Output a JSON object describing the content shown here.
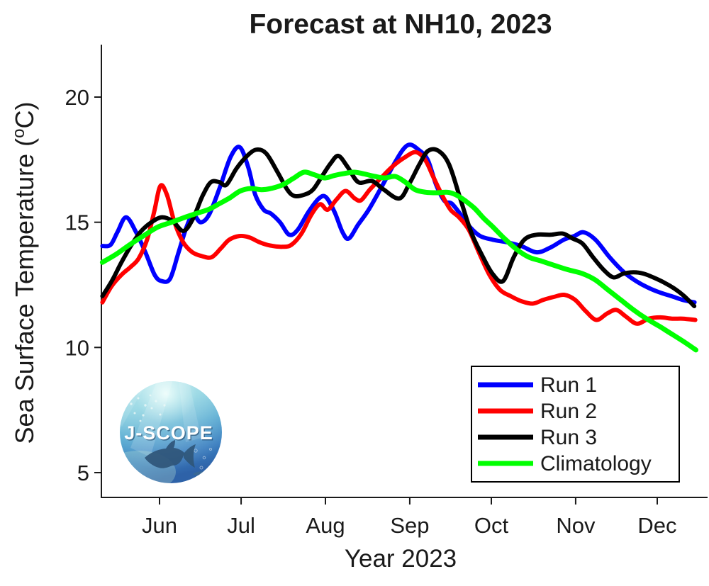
{
  "title": "Forecast at NH10, 2023",
  "axes": {
    "xlabel": "Year 2023",
    "ylabel_parts": {
      "pre": "Sea Surface Temperature (",
      "sup": "o",
      "post": "C)"
    }
  },
  "logo": {
    "text": "J-SCOPE"
  },
  "chart_data": {
    "type": "line",
    "title": "Forecast at NH10, 2023",
    "xlabel": "Year 2023",
    "ylabel": "Sea Surface Temperature (°C)",
    "x_unit": "day_of_year_2023",
    "xlim": [
      131,
      352
    ],
    "ylim": [
      4,
      22
    ],
    "grid": false,
    "legend_position": "lower right",
    "y_ticks": {
      "values": [
        5,
        10,
        15,
        20
      ],
      "labels": [
        "5",
        "10",
        "15",
        "20"
      ]
    },
    "x_ticks": {
      "day_of_year": [
        152,
        182,
        213,
        244,
        274,
        305,
        335
      ],
      "labels": [
        "Jun",
        "Jul",
        "Aug",
        "Sep",
        "Oct",
        "Nov",
        "Dec"
      ]
    },
    "series": [
      {
        "name": "Run 1",
        "color": "#0000ff",
        "width": 6,
        "points": [
          [
            131,
            14.05
          ],
          [
            134,
            14.1
          ],
          [
            136.5,
            14.6
          ],
          [
            139.7,
            15.2
          ],
          [
            143.4,
            14.6
          ],
          [
            146.8,
            13.8
          ],
          [
            150.2,
            12.9
          ],
          [
            152.8,
            12.65
          ],
          [
            155.9,
            12.75
          ],
          [
            159,
            13.8
          ],
          [
            161.9,
            14.8
          ],
          [
            164.3,
            15.3
          ],
          [
            167.1,
            15.0
          ],
          [
            170.2,
            15.3
          ],
          [
            174.2,
            16.4
          ],
          [
            178.1,
            17.6
          ],
          [
            181.5,
            18.0
          ],
          [
            184.6,
            17.2
          ],
          [
            187.2,
            16.1
          ],
          [
            190.3,
            15.5
          ],
          [
            192.9,
            15.35
          ],
          [
            196.3,
            15.0
          ],
          [
            199.7,
            14.5
          ],
          [
            202.8,
            14.7
          ],
          [
            206.7,
            15.4
          ],
          [
            210.6,
            15.95
          ],
          [
            213.2,
            16.0
          ],
          [
            216.4,
            15.4
          ],
          [
            219.3,
            14.6
          ],
          [
            221.6,
            14.35
          ],
          [
            225,
            14.9
          ],
          [
            228.9,
            15.5
          ],
          [
            233.6,
            16.4
          ],
          [
            238.1,
            17.3
          ],
          [
            241.5,
            17.9
          ],
          [
            244.1,
            18.1
          ],
          [
            247.2,
            17.9
          ],
          [
            250.6,
            17.5
          ],
          [
            253.7,
            16.5
          ],
          [
            256.8,
            15.85
          ],
          [
            259.4,
            15.75
          ],
          [
            262.8,
            15.3
          ],
          [
            266.2,
            14.8
          ],
          [
            269.9,
            14.45
          ],
          [
            274.6,
            14.3
          ],
          [
            279.8,
            14.2
          ],
          [
            285,
            14.05
          ],
          [
            290.7,
            13.8
          ],
          [
            295.9,
            14.0
          ],
          [
            300.6,
            14.3
          ],
          [
            304.5,
            14.45
          ],
          [
            307.9,
            14.6
          ],
          [
            312.3,
            14.3
          ],
          [
            317.5,
            13.6
          ],
          [
            322.8,
            13.0
          ],
          [
            327.2,
            12.65
          ],
          [
            331.4,
            12.4
          ],
          [
            335.8,
            12.2
          ],
          [
            340.2,
            12.05
          ],
          [
            344.3,
            11.9
          ],
          [
            348.7,
            11.8
          ]
        ]
      },
      {
        "name": "Run 2",
        "color": "#ff0000",
        "width": 6,
        "points": [
          [
            131,
            11.8
          ],
          [
            134.4,
            12.45
          ],
          [
            138,
            12.9
          ],
          [
            141.2,
            13.2
          ],
          [
            144.3,
            13.55
          ],
          [
            147.4,
            14.3
          ],
          [
            150,
            15.4
          ],
          [
            152.3,
            16.45
          ],
          [
            154.7,
            16.1
          ],
          [
            157.5,
            15.0
          ],
          [
            160.7,
            14.2
          ],
          [
            164.1,
            13.8
          ],
          [
            167.5,
            13.65
          ],
          [
            171.1,
            13.6
          ],
          [
            174.5,
            13.95
          ],
          [
            177.6,
            14.3
          ],
          [
            181.3,
            14.45
          ],
          [
            184.9,
            14.4
          ],
          [
            188.8,
            14.2
          ],
          [
            192.7,
            14.07
          ],
          [
            197.2,
            14.02
          ],
          [
            200.5,
            14.1
          ],
          [
            204.2,
            14.55
          ],
          [
            207.8,
            15.3
          ],
          [
            211,
            15.72
          ],
          [
            213.8,
            15.5
          ],
          [
            217,
            15.9
          ],
          [
            220.4,
            16.25
          ],
          [
            223.8,
            15.95
          ],
          [
            226.1,
            15.88
          ],
          [
            229.3,
            16.3
          ],
          [
            233.7,
            16.8
          ],
          [
            237.9,
            17.25
          ],
          [
            242.3,
            17.6
          ],
          [
            246.2,
            17.8
          ],
          [
            249.6,
            17.5
          ],
          [
            252.7,
            16.8
          ],
          [
            255.8,
            16.1
          ],
          [
            259,
            15.5
          ],
          [
            262.1,
            15.2
          ],
          [
            265.7,
            14.7
          ],
          [
            269.4,
            13.8
          ],
          [
            273.3,
            12.9
          ],
          [
            277.2,
            12.3
          ],
          [
            281.1,
            12.05
          ],
          [
            285,
            11.85
          ],
          [
            289.2,
            11.75
          ],
          [
            293.1,
            11.9
          ],
          [
            297,
            12.02
          ],
          [
            300.9,
            12.1
          ],
          [
            304.8,
            11.9
          ],
          [
            308.7,
            11.45
          ],
          [
            312.6,
            11.1
          ],
          [
            316.5,
            11.35
          ],
          [
            319.9,
            11.5
          ],
          [
            323.3,
            11.25
          ],
          [
            327.5,
            10.95
          ],
          [
            331.9,
            11.15
          ],
          [
            336.1,
            11.2
          ],
          [
            340.5,
            11.15
          ],
          [
            344.4,
            11.15
          ],
          [
            349,
            11.1
          ]
        ]
      },
      {
        "name": "Run 3",
        "color": "#000000",
        "width": 6,
        "points": [
          [
            131,
            12.05
          ],
          [
            134.7,
            12.7
          ],
          [
            138,
            13.4
          ],
          [
            141.7,
            14.1
          ],
          [
            145.3,
            14.65
          ],
          [
            149,
            15.0
          ],
          [
            152.9,
            15.2
          ],
          [
            156.8,
            15.05
          ],
          [
            160.7,
            14.65
          ],
          [
            164.1,
            15.1
          ],
          [
            167.8,
            16.05
          ],
          [
            170.9,
            16.6
          ],
          [
            174,
            16.6
          ],
          [
            176.6,
            16.5
          ],
          [
            180.3,
            17.15
          ],
          [
            184.2,
            17.65
          ],
          [
            187.6,
            17.9
          ],
          [
            191.2,
            17.75
          ],
          [
            195.4,
            17.0
          ],
          [
            199,
            16.3
          ],
          [
            201.6,
            16.05
          ],
          [
            205.2,
            16.1
          ],
          [
            208.4,
            16.3
          ],
          [
            211.8,
            16.85
          ],
          [
            214.9,
            17.35
          ],
          [
            217.8,
            17.65
          ],
          [
            221.2,
            17.2
          ],
          [
            225.1,
            16.6
          ],
          [
            230.1,
            16.65
          ],
          [
            234.5,
            16.3
          ],
          [
            240.2,
            15.95
          ],
          [
            243.9,
            16.55
          ],
          [
            247.5,
            17.3
          ],
          [
            250.7,
            17.85
          ],
          [
            254.6,
            17.85
          ],
          [
            258.5,
            17.3
          ],
          [
            262.7,
            15.9
          ],
          [
            266.6,
            14.6
          ],
          [
            270.5,
            13.7
          ],
          [
            274.4,
            12.95
          ],
          [
            278.3,
            12.65
          ],
          [
            282.2,
            13.6
          ],
          [
            286.1,
            14.3
          ],
          [
            290.6,
            14.5
          ],
          [
            295.8,
            14.5
          ],
          [
            300.2,
            14.55
          ],
          [
            303.9,
            14.35
          ],
          [
            307.5,
            14.15
          ],
          [
            311.4,
            13.6
          ],
          [
            315.3,
            13.1
          ],
          [
            318.9,
            12.8
          ],
          [
            322.6,
            12.95
          ],
          [
            326.2,
            13.0
          ],
          [
            329.9,
            12.95
          ],
          [
            333.5,
            12.8
          ],
          [
            337.4,
            12.6
          ],
          [
            341.3,
            12.35
          ],
          [
            344.9,
            12.05
          ],
          [
            348.6,
            11.65
          ]
        ]
      },
      {
        "name": "Climatology",
        "color": "#00ff00",
        "width": 7,
        "points": [
          [
            131,
            13.4
          ],
          [
            136,
            13.72
          ],
          [
            141,
            14.1
          ],
          [
            146,
            14.45
          ],
          [
            151.2,
            14.8
          ],
          [
            156.4,
            15.0
          ],
          [
            161.4,
            15.2
          ],
          [
            166.1,
            15.37
          ],
          [
            170.2,
            15.52
          ],
          [
            174.1,
            15.75
          ],
          [
            177.8,
            15.97
          ],
          [
            181.7,
            16.25
          ],
          [
            185.6,
            16.35
          ],
          [
            189.5,
            16.3
          ],
          [
            193.4,
            16.36
          ],
          [
            197.3,
            16.5
          ],
          [
            201.2,
            16.75
          ],
          [
            205.1,
            17.0
          ],
          [
            208.8,
            16.9
          ],
          [
            212.7,
            16.77
          ],
          [
            216.3,
            16.87
          ],
          [
            220,
            16.95
          ],
          [
            223.6,
            17.0
          ],
          [
            227.3,
            16.93
          ],
          [
            231.2,
            16.83
          ],
          [
            234.8,
            16.77
          ],
          [
            238.7,
            16.83
          ],
          [
            242.4,
            16.6
          ],
          [
            246,
            16.3
          ],
          [
            249.9,
            16.2
          ],
          [
            253.9,
            16.18
          ],
          [
            257.8,
            16.2
          ],
          [
            260.9,
            16.1
          ],
          [
            264.5,
            15.85
          ],
          [
            267.9,
            15.55
          ],
          [
            271.3,
            15.15
          ],
          [
            274.7,
            14.8
          ],
          [
            278.8,
            14.35
          ],
          [
            283.5,
            13.9
          ],
          [
            287.9,
            13.6
          ],
          [
            292.4,
            13.45
          ],
          [
            297.1,
            13.28
          ],
          [
            302.3,
            13.1
          ],
          [
            307.5,
            12.95
          ],
          [
            312.2,
            12.7
          ],
          [
            316.9,
            12.3
          ],
          [
            321.6,
            11.9
          ],
          [
            326.3,
            11.5
          ],
          [
            331,
            11.15
          ],
          [
            335.7,
            10.85
          ],
          [
            340.1,
            10.55
          ],
          [
            344.5,
            10.25
          ],
          [
            349.2,
            9.9
          ]
        ]
      }
    ]
  }
}
